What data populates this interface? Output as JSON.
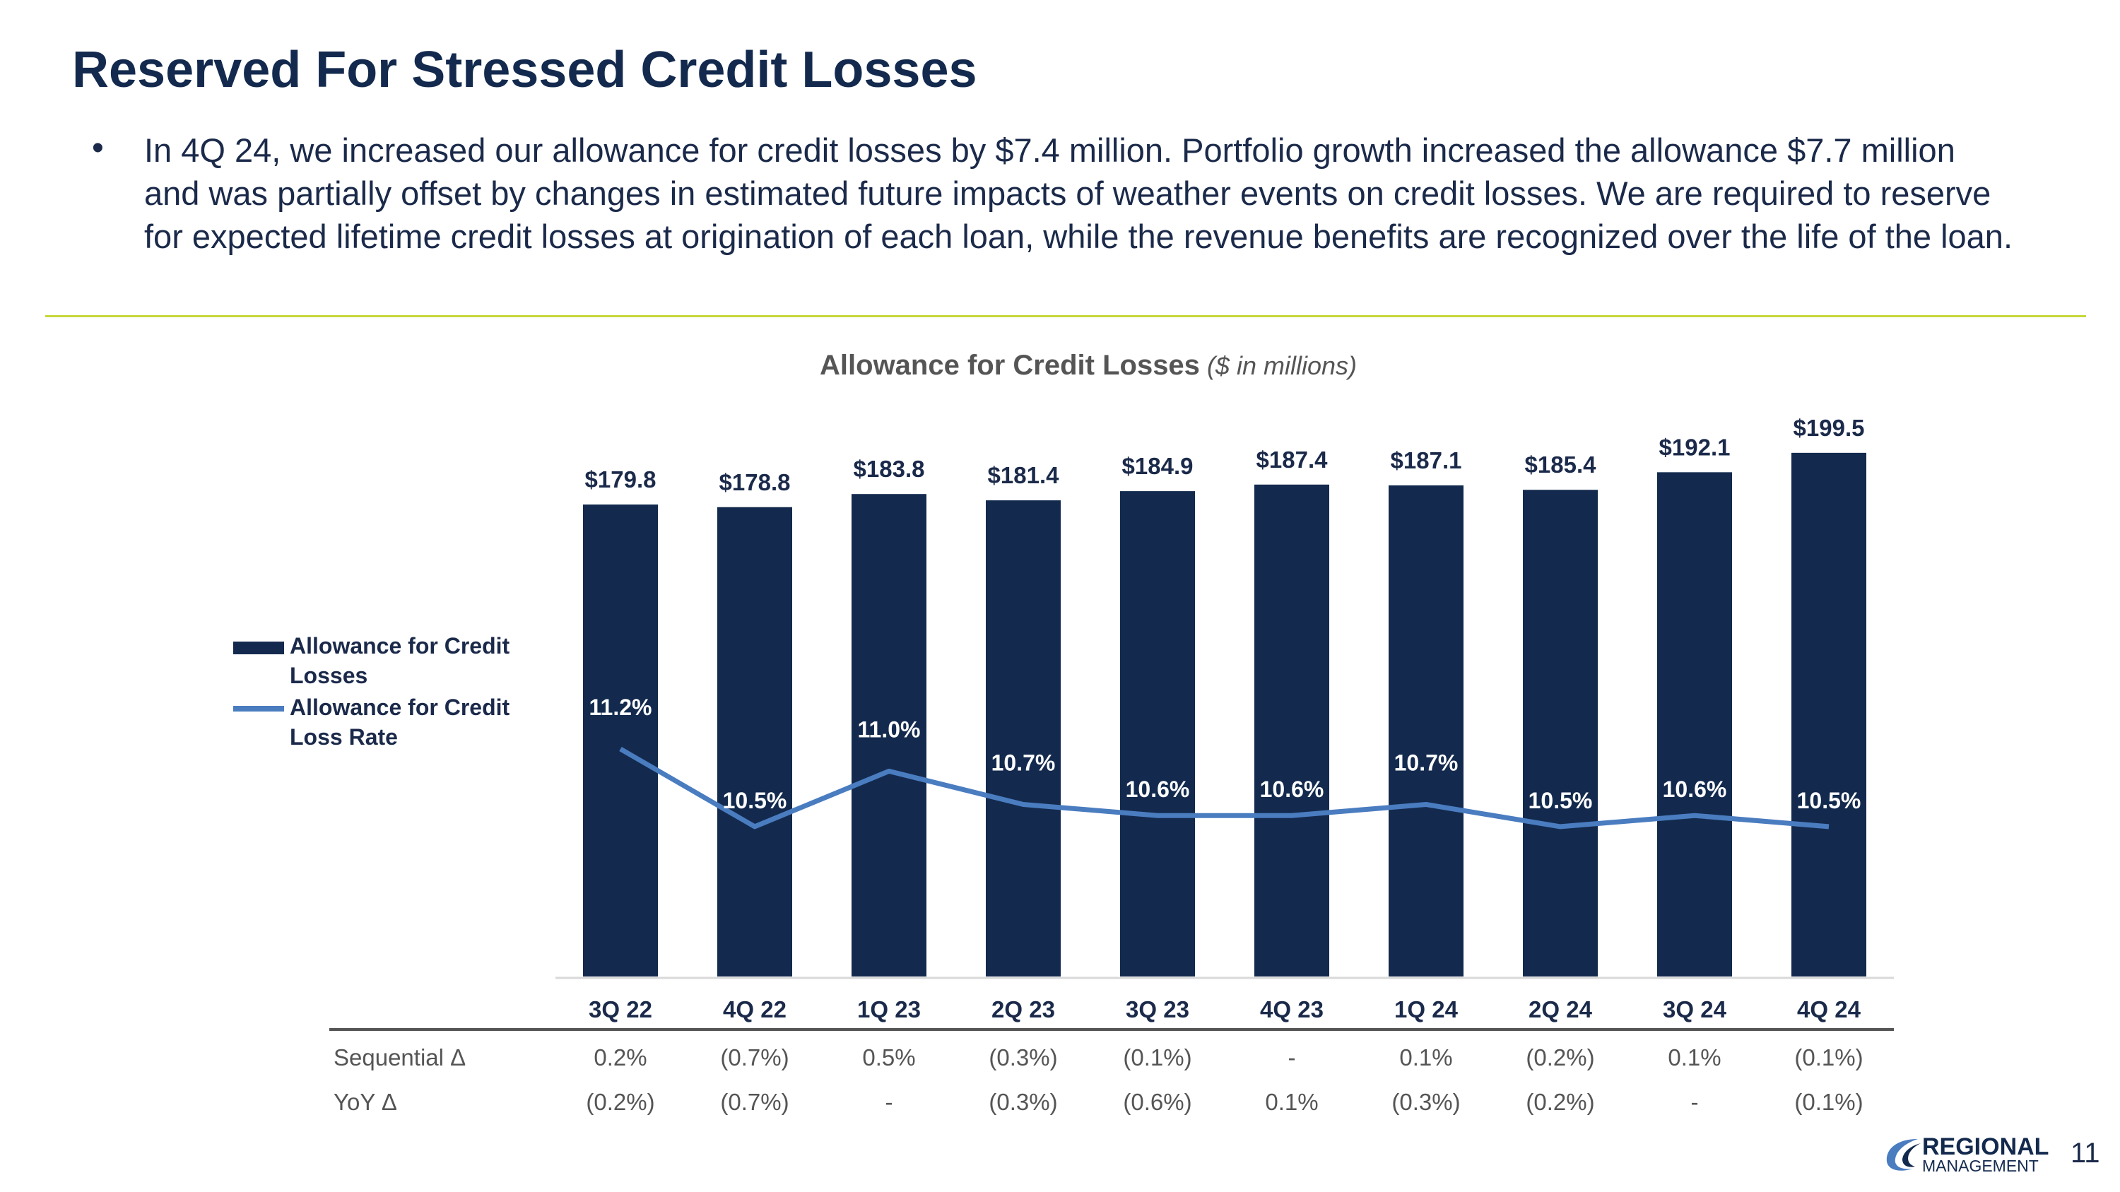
{
  "title": "Reserved For Stressed Credit Losses",
  "bullet": "In 4Q 24, we increased our allowance for credit losses by $7.4 million. Portfolio growth increased the allowance $7.7 million and was partially offset by changes in estimated future impacts of weather events on credit losses. We are required to reserve for expected lifetime credit losses at origination of each loan, while the revenue benefits are recognized over the life of the loan.",
  "page_number": "11",
  "logo": {
    "line1": "REGIONAL",
    "line2": "MANAGEMENT"
  },
  "colors": {
    "bar": "#132a4e",
    "line": "#4a7cc0",
    "divider": "#c8d73a",
    "text": "#1b2a4a"
  },
  "chart_data": {
    "type": "bar",
    "title": "Allowance for Credit Losses",
    "subtitle": "($ in millions)",
    "categories": [
      "3Q 22",
      "4Q 22",
      "1Q 23",
      "2Q 23",
      "3Q 23",
      "4Q 23",
      "1Q 24",
      "2Q 24",
      "3Q 24",
      "4Q 24"
    ],
    "series": [
      {
        "name": "Allowance for Credit Losses",
        "type": "bar",
        "values": [
          179.8,
          178.8,
          183.8,
          181.4,
          184.9,
          187.4,
          187.1,
          185.4,
          192.1,
          199.5
        ],
        "labels": [
          "$179.8",
          "$178.8",
          "$183.8",
          "$181.4",
          "$184.9",
          "$187.4",
          "$187.1",
          "$185.4",
          "$192.1",
          "$199.5"
        ]
      },
      {
        "name": "Allowance for Credit Loss Rate",
        "type": "line",
        "values": [
          11.2,
          10.5,
          11.0,
          10.7,
          10.6,
          10.6,
          10.7,
          10.5,
          10.6,
          10.5
        ],
        "labels": [
          "11.2%",
          "10.5%",
          "11.0%",
          "10.7%",
          "10.6%",
          "10.6%",
          "10.7%",
          "10.5%",
          "10.6%",
          "10.5%"
        ]
      }
    ],
    "legend": [
      "Allowance for Credit Losses",
      "Allowance for Credit Loss Rate"
    ],
    "table": {
      "rows": [
        {
          "label": "Sequential Δ",
          "values": [
            "0.2%",
            "(0.7%)",
            "0.5%",
            "(0.3%)",
            "(0.1%)",
            "-",
            "0.1%",
            "(0.2%)",
            "0.1%",
            "(0.1%)"
          ]
        },
        {
          "label": "YoY Δ",
          "values": [
            "(0.2%)",
            "(0.7%)",
            "-",
            "(0.3%)",
            "(0.6%)",
            "0.1%",
            "(0.3%)",
            "(0.2%)",
            "-",
            "(0.1%)"
          ]
        }
      ]
    }
  }
}
